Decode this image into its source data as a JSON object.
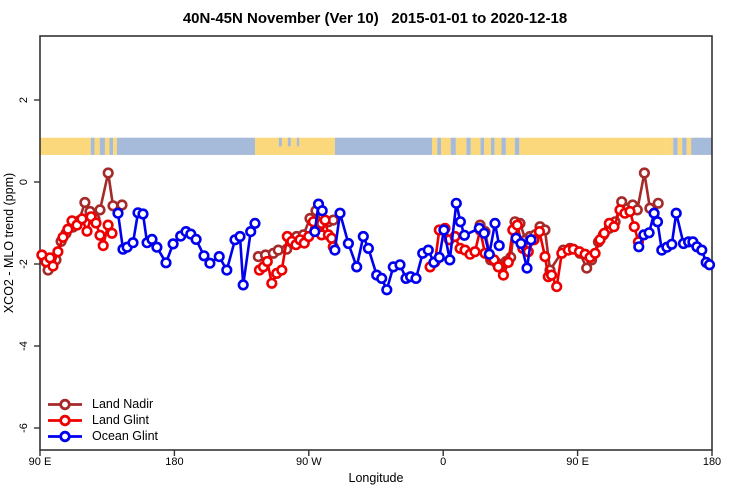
{
  "title": "40N-45N November (Ver 10)   2015-01-01 to 2020-12-18",
  "chart_data": {
    "type": "line",
    "title": "40N-45N November (Ver 10)   2015-01-01 to 2020-12-18",
    "xlabel": "Longitude",
    "ylabel": "XCO2 - MLO trend (ppm)",
    "x_axis": {
      "note": "axis spans 450 degrees of longitude starting at 90E and wrapping east to 180",
      "range_deg": [
        0,
        450
      ],
      "ticks_deg": [
        0,
        90,
        180,
        270,
        360,
        450
      ],
      "tick_labels": [
        "90 E",
        "180",
        "90 W",
        "0",
        "90 E",
        "180"
      ]
    },
    "y_axis": {
      "ticks": [
        2,
        0,
        -2,
        -4,
        -6
      ],
      "tick_labels": [
        "2",
        "0",
        "-2",
        "-4",
        "-6"
      ],
      "range": [
        3.1,
        -6.6
      ]
    },
    "grid": false,
    "legend_position": "bottom-left-inside",
    "legend": [
      {
        "label": "Land Nadir",
        "color": "#A52A2A"
      },
      {
        "label": "Land Glint",
        "color": "#EE0000"
      },
      {
        "label": "Ocean Glint",
        "color": "#0000EE"
      }
    ],
    "map_band": {
      "description": "land/ocean strip map of the 40N-45N latitude band, plotted near y=+0.8",
      "land_color": "#FBD87C",
      "ocean_color": "#A6BBD9",
      "value_top": 1.08,
      "value_bottom": 0.66,
      "segments": [
        [
          0,
          34,
          "land"
        ],
        [
          34,
          36.5,
          "ocean"
        ],
        [
          36.5,
          40,
          "land"
        ],
        [
          40,
          43.5,
          "ocean"
        ],
        [
          43.5,
          46.5,
          "land"
        ],
        [
          46.5,
          49,
          "ocean"
        ],
        [
          49,
          51.5,
          "land"
        ],
        [
          51.5,
          144,
          "ocean"
        ],
        [
          144,
          197.5,
          "land"
        ],
        [
          197.5,
          262.5,
          "ocean"
        ],
        [
          262.5,
          266,
          "land"
        ],
        [
          266,
          268.5,
          "ocean"
        ],
        [
          268.5,
          275,
          "land"
        ],
        [
          275,
          278.5,
          "ocean"
        ],
        [
          278.5,
          285.5,
          "land"
        ],
        [
          285.5,
          288.5,
          "ocean"
        ],
        [
          288.5,
          295,
          "land"
        ],
        [
          295,
          297.5,
          "ocean"
        ],
        [
          297.5,
          302,
          "land"
        ],
        [
          302,
          304.5,
          "ocean"
        ],
        [
          304.5,
          309,
          "land"
        ],
        [
          309,
          312,
          "ocean"
        ],
        [
          312,
          318,
          "land"
        ],
        [
          318,
          321,
          "ocean"
        ],
        [
          321,
          418.6,
          "land"
        ],
        [
          418.6,
          424,
          "land"
        ],
        [
          424,
          427,
          "ocean"
        ],
        [
          427,
          430,
          "land"
        ],
        [
          430,
          433,
          "ocean"
        ],
        [
          433,
          436,
          "land"
        ],
        [
          436,
          450,
          "ocean"
        ]
      ],
      "lake_notches_deg": [
        [
          160,
          162
        ],
        [
          166,
          168
        ],
        [
          172,
          173.5
        ]
      ]
    },
    "series": [
      {
        "name": "Land Nadir",
        "color": "#A52A2A",
        "segments": [
          [
            [
              5.4,
              -2.15
            ],
            [
              10.7,
              -1.9
            ],
            [
              14.1,
              -1.45
            ],
            [
              17.4,
              -1.25
            ],
            [
              22.1,
              -1.1
            ],
            [
              26.1,
              -0.95
            ],
            [
              30.1,
              -0.5
            ],
            [
              33.5,
              -0.72
            ],
            [
              36.8,
              -0.9
            ],
            [
              40.2,
              -0.68
            ],
            [
              45.7,
              0.22
            ],
            [
              48.9,
              -0.58
            ],
            [
              54.9,
              -0.56
            ]
          ],
          [
            [
              146.2,
              -1.82
            ],
            [
              151,
              -1.78
            ],
            [
              156.2,
              -1.74
            ],
            [
              159.6,
              -1.66
            ],
            [
              165.2,
              -1.64
            ],
            [
              171.9,
              -1.33
            ],
            [
              176.4,
              -1.29
            ],
            [
              180.8,
              -0.89
            ],
            [
              184.8,
              -0.7
            ],
            [
              188.6,
              -1.01
            ],
            [
              193.1,
              -0.97
            ],
            [
              196.4,
              -0.93
            ]
          ],
          [
            [
              294.7,
              -1.05
            ],
            [
              298,
              -1.21
            ],
            [
              301.8,
              -1.9
            ],
            [
              305.4,
              -1.96
            ],
            [
              308.5,
              -2.02
            ],
            [
              312.1,
              -1.94
            ],
            [
              315.2,
              -1.84
            ],
            [
              318.1,
              -0.97
            ],
            [
              321.4,
              -1.01
            ],
            [
              325.2,
              -1.41
            ],
            [
              328.1,
              -1.33
            ],
            [
              331.5,
              -1.29
            ],
            [
              334.8,
              -1.09
            ],
            [
              338.2,
              -1.17
            ],
            [
              341.5,
              -2.15
            ],
            [
              350.4,
              -1.66
            ],
            [
              354.9,
              -1.62
            ],
            [
              361.6,
              -1.74
            ],
            [
              366.1,
              -2.1
            ],
            [
              369.4,
              -1.9
            ],
            [
              373.9,
              -1.46
            ],
            [
              377.2,
              -1.29
            ],
            [
              381.2,
              -1.13
            ],
            [
              385.1,
              -0.97
            ],
            [
              389.5,
              -0.48
            ],
            [
              393.3,
              -0.65
            ],
            [
              396.9,
              -0.56
            ],
            [
              400,
              -0.68
            ],
            [
              404.7,
              0.22
            ],
            [
              408.4,
              -0.64
            ],
            [
              414,
              -0.52
            ]
          ]
        ]
      },
      {
        "name": "Land Glint",
        "color": "#EE0000",
        "segments": [
          [
            [
              1.3,
              -1.78
            ],
            [
              4,
              -1.95
            ],
            [
              6.7,
              -1.85
            ],
            [
              8.7,
              -2.05
            ],
            [
              12,
              -1.7
            ],
            [
              15.4,
              -1.35
            ],
            [
              18.7,
              -1.15
            ],
            [
              21.4,
              -0.95
            ],
            [
              24.8,
              -1.05
            ],
            [
              28.1,
              -0.9
            ],
            [
              31.5,
              -1.2
            ],
            [
              34.2,
              -0.85
            ],
            [
              37.5,
              -1.0
            ],
            [
              40.2,
              -1.3
            ],
            [
              42.3,
              -1.55
            ],
            [
              45.6,
              -1.05
            ],
            [
              48.2,
              -1.25
            ]
          ],
          [
            [
              146.9,
              -2.15
            ],
            [
              149.6,
              -2.07
            ],
            [
              152.2,
              -1.94
            ],
            [
              155.2,
              -2.47
            ],
            [
              158.5,
              -2.23
            ],
            [
              161.9,
              -2.15
            ],
            [
              165.6,
              -1.33
            ],
            [
              168.6,
              -1.45
            ],
            [
              171.4,
              -1.53
            ],
            [
              174.1,
              -1.41
            ],
            [
              177,
              -1.49
            ],
            [
              179.9,
              -1.33
            ],
            [
              183,
              -0.97
            ],
            [
              186.4,
              -1.21
            ],
            [
              188.6,
              -1.29
            ],
            [
              190.9,
              -0.93
            ],
            [
              193.1,
              -1.29
            ],
            [
              195.3,
              -1.37
            ],
            [
              196.4,
              -1.58
            ]
          ],
          [
            [
              261.2,
              -2.07
            ],
            [
              264.5,
              -1.95
            ],
            [
              267.4,
              -1.17
            ],
            [
              271.2,
              -1.13
            ],
            [
              274.1,
              -1.41
            ],
            [
              277.9,
              -1.33
            ],
            [
              281.3,
              -1.62
            ],
            [
              284.6,
              -1.66
            ],
            [
              288,
              -1.76
            ],
            [
              291.3,
              -1.7
            ],
            [
              294.7,
              -1.17
            ],
            [
              298,
              -1.74
            ],
            [
              301.4,
              -1.82
            ],
            [
              304.1,
              -1.9
            ],
            [
              306.9,
              -2.07
            ],
            [
              310.3,
              -2.27
            ],
            [
              313.6,
              -1.96
            ],
            [
              316.6,
              -1.17
            ],
            [
              319.6,
              -1.05
            ],
            [
              323.3,
              -1.62
            ],
            [
              327,
              -1.7
            ],
            [
              330.8,
              -1.41
            ],
            [
              334.4,
              -1.21
            ],
            [
              338.2,
              -1.82
            ],
            [
              340.4,
              -2.31
            ],
            [
              342.6,
              -2.27
            ],
            [
              346,
              -2.55
            ],
            [
              349.4,
              -1.74
            ],
            [
              353.8,
              -1.66
            ],
            [
              357.2,
              -1.64
            ],
            [
              361.2,
              -1.7
            ],
            [
              365,
              -1.76
            ],
            [
              368.3,
              -1.84
            ],
            [
              371.7,
              -1.74
            ],
            [
              375,
              -1.41
            ],
            [
              377.9,
              -1.25
            ],
            [
              381.2,
              -1.01
            ],
            [
              384.4,
              -1.09
            ],
            [
              388.4,
              -0.68
            ],
            [
              391.7,
              -0.76
            ],
            [
              395.1,
              -0.72
            ],
            [
              398,
              -1.09
            ],
            [
              400.7,
              -1.46
            ]
          ]
        ]
      },
      {
        "name": "Ocean Glint",
        "color": "#0000EE",
        "segments": [
          [
            [
              52.2,
              -0.76
            ],
            [
              55.6,
              -1.64
            ],
            [
              58.3,
              -1.59
            ],
            [
              62.3,
              -1.48
            ],
            [
              65.6,
              -0.75
            ],
            [
              69,
              -0.78
            ],
            [
              71.7,
              -1.48
            ],
            [
              75,
              -1.4
            ],
            [
              78.3,
              -1.59
            ],
            [
              84.4,
              -1.97
            ],
            [
              89.1,
              -1.51
            ],
            [
              94.2,
              -1.32
            ],
            [
              97.8,
              -1.21
            ],
            [
              101,
              -1.27
            ],
            [
              104.5,
              -1.4
            ],
            [
              109.8,
              -1.8
            ],
            [
              113.8,
              -1.98
            ],
            [
              120,
              -1.82
            ],
            [
              125.1,
              -2.15
            ],
            [
              130.6,
              -1.41
            ],
            [
              133.9,
              -1.33
            ],
            [
              136.1,
              -2.51
            ],
            [
              141.1,
              -1.21
            ],
            [
              144,
              -1.01
            ]
          ],
          [
            [
              184,
              -1.21
            ],
            [
              186.5,
              -0.54
            ],
            [
              189,
              -0.7
            ]
          ],
          [
            [
              197.5,
              -1.66
            ],
            [
              200.9,
              -0.76
            ],
            [
              206.5,
              -1.5
            ],
            [
              212.1,
              -2.07
            ],
            [
              216.5,
              -1.33
            ],
            [
              219.9,
              -1.62
            ],
            [
              225.5,
              -2.27
            ],
            [
              228.8,
              -2.35
            ],
            [
              232.2,
              -2.63
            ],
            [
              236.6,
              -2.07
            ],
            [
              241.1,
              -2.02
            ],
            [
              245.1,
              -2.35
            ],
            [
              248.2,
              -2.31
            ],
            [
              251.8,
              -2.35
            ],
            [
              256.3,
              -1.74
            ],
            [
              260,
              -1.66
            ],
            [
              263.8,
              -1.96
            ],
            [
              267.4,
              -1.84
            ],
            [
              270.5,
              -1.17
            ],
            [
              274.4,
              -1.9
            ],
            [
              278.8,
              -0.52
            ],
            [
              281.5,
              -0.97
            ],
            [
              284.2,
              -1.3
            ],
            [
              294.2,
              -1.13
            ],
            [
              297.4,
              -1.25
            ],
            [
              300.9,
              -1.76
            ],
            [
              304.7,
              -1.01
            ],
            [
              307.5,
              -1.55
            ]
          ],
          [
            [
              318.8,
              -1.37
            ],
            [
              322.1,
              -1.5
            ],
            [
              326.1,
              -2.1
            ],
            [
              328.8,
              -1.41
            ]
          ],
          [
            [
              401,
              -1.58
            ],
            [
              404.3,
              -1.29
            ],
            [
              407.9,
              -1.24
            ],
            [
              411.2,
              -0.76
            ],
            [
              413.5,
              -0.97
            ],
            [
              416.4,
              -1.66
            ],
            [
              419.8,
              -1.59
            ],
            [
              423.1,
              -1.52
            ],
            [
              426,
              -0.76
            ],
            [
              430.9,
              -1.5
            ],
            [
              434.3,
              -1.46
            ],
            [
              437.2,
              -1.46
            ],
            [
              439.9,
              -1.58
            ],
            [
              443.2,
              -1.66
            ],
            [
              446.1,
              -1.96
            ],
            [
              448.3,
              -2.02
            ]
          ]
        ]
      }
    ]
  },
  "style": {
    "axis_color": "#333333",
    "text_color": "#000000",
    "background": "#ffffff"
  }
}
